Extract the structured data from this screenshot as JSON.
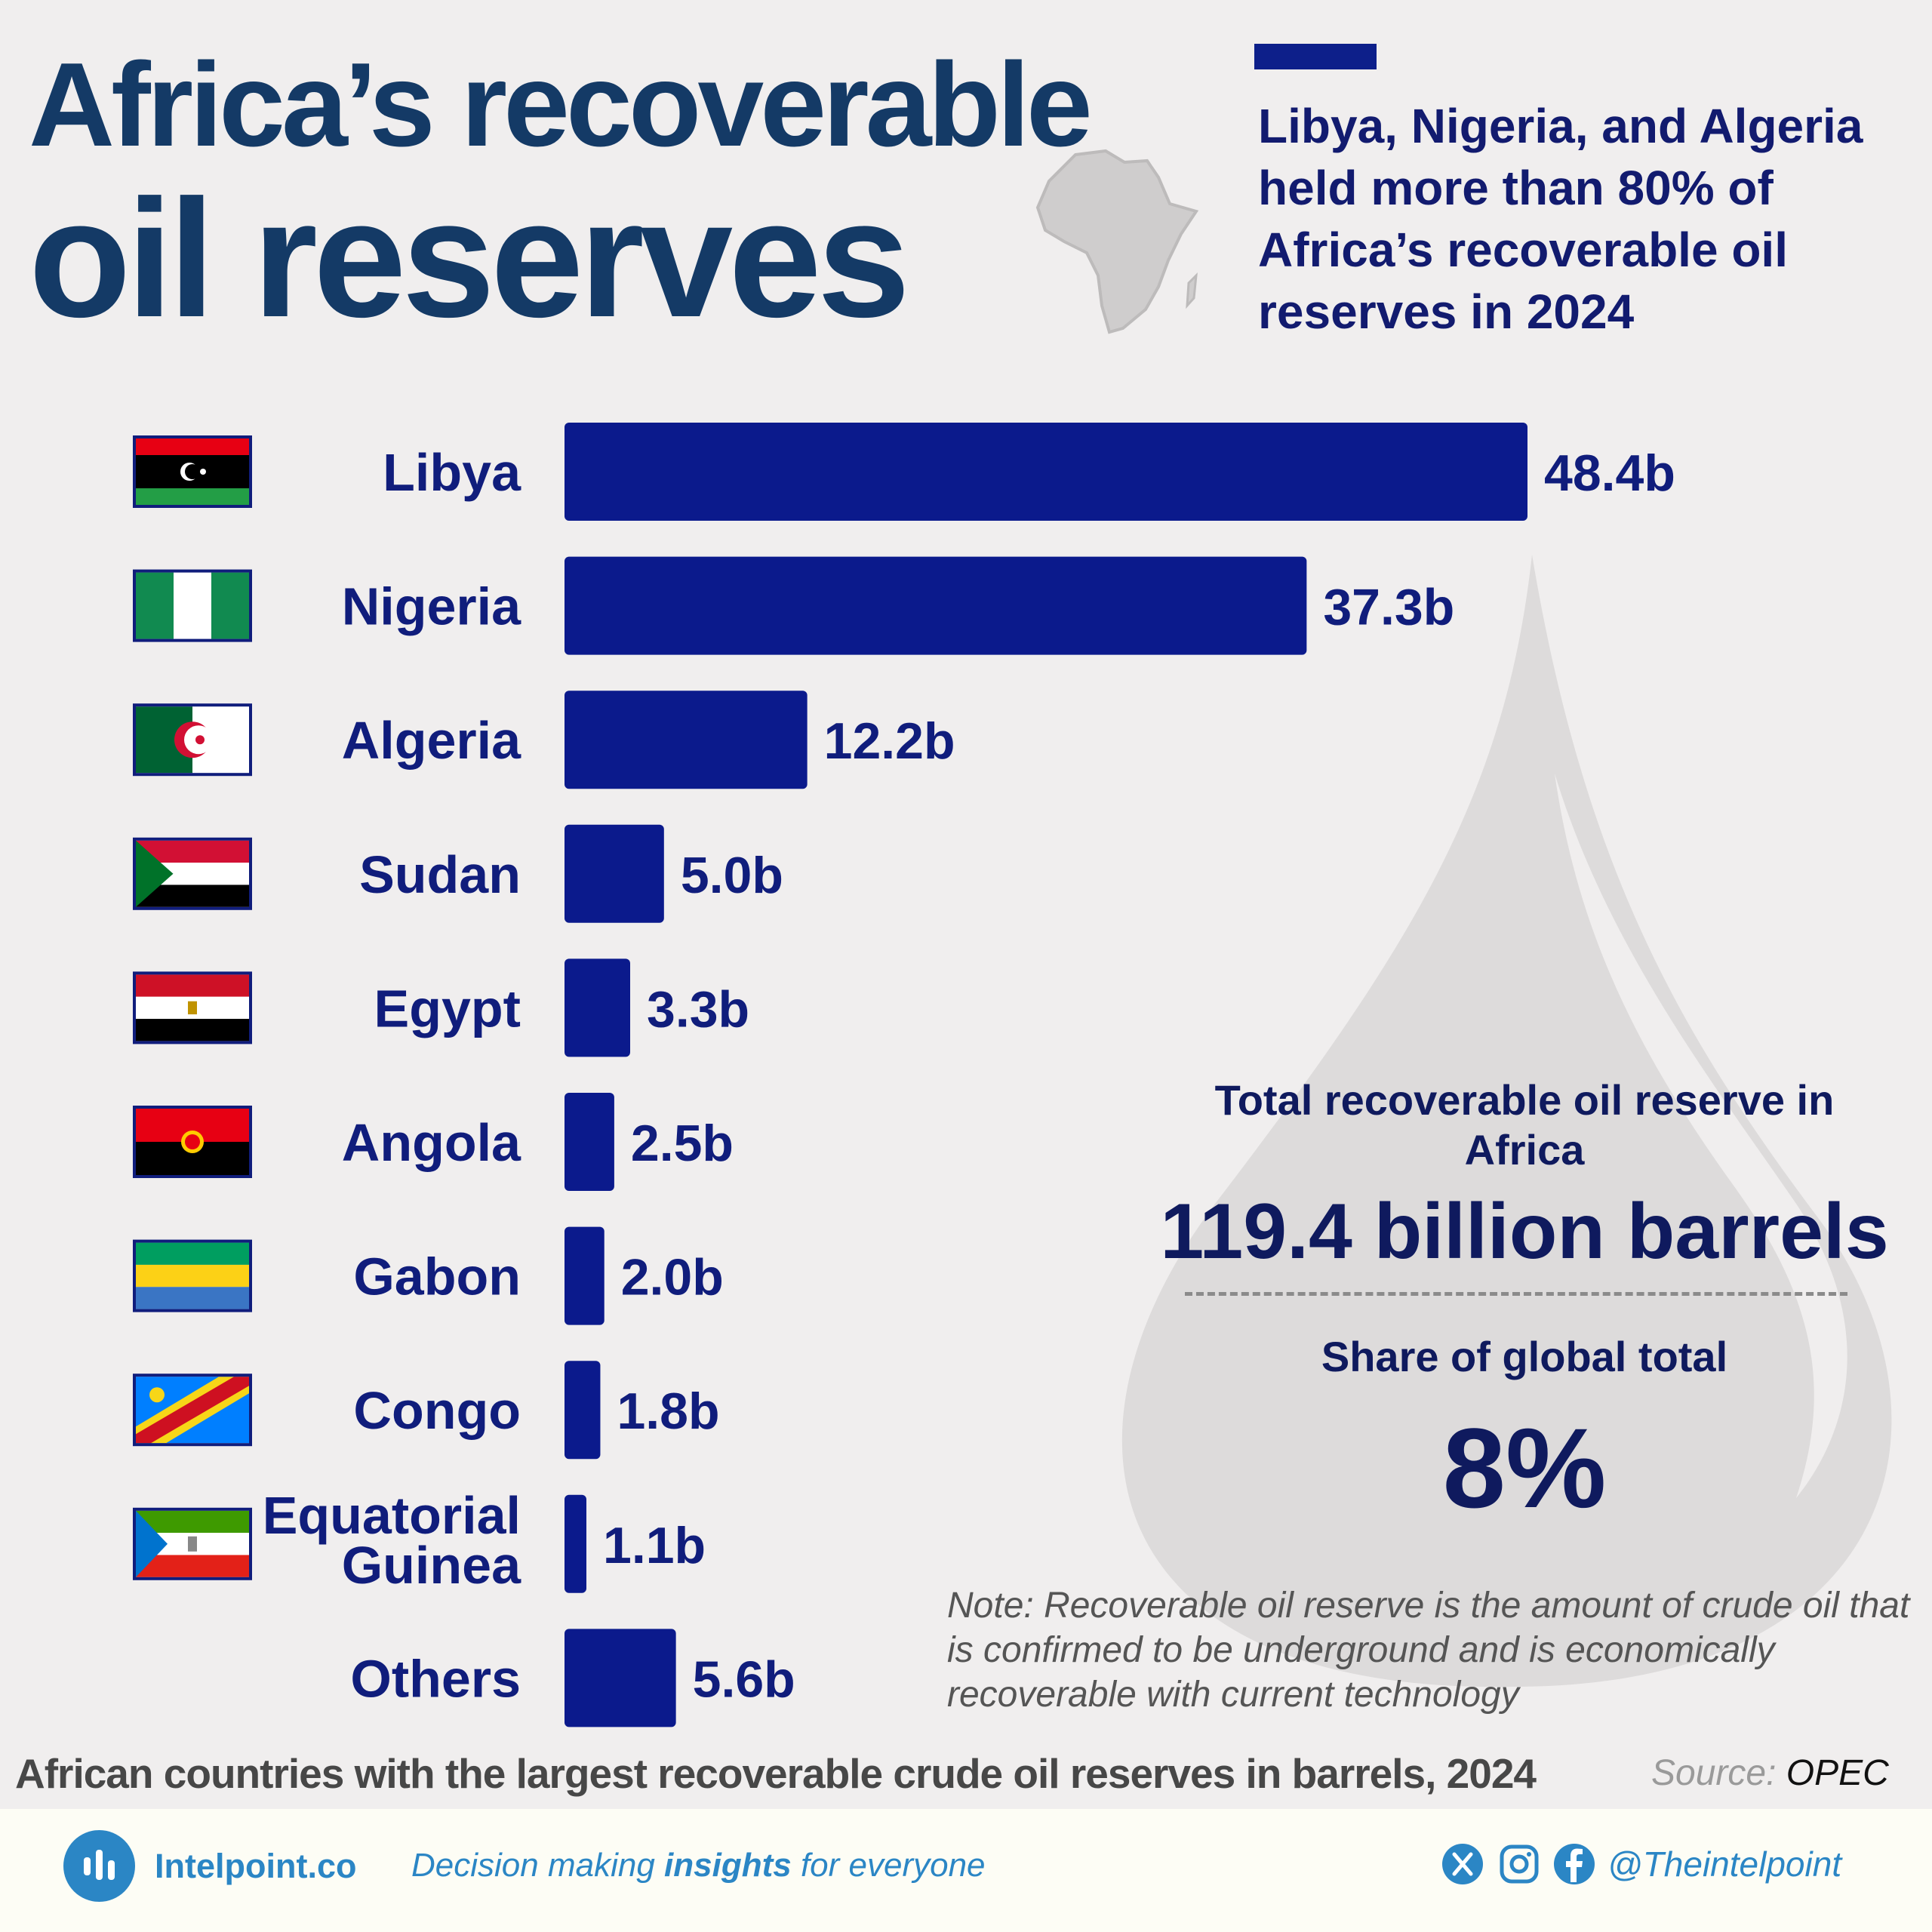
{
  "header": {
    "title_line1": "Africa’s recoverable",
    "title_line2": "oil reserves",
    "subtitle": "Libya, Nigeria, and Algeria held more than 80% of Africa’s recoverable oil reserves in 2024"
  },
  "chart_data": {
    "type": "bar",
    "orientation": "horizontal",
    "categories": [
      "Libya",
      "Nigeria",
      "Algeria",
      "Sudan",
      "Egypt",
      "Angola",
      "Gabon",
      "Congo",
      "Equatorial Guinea",
      "Others"
    ],
    "values": [
      48.4,
      37.3,
      12.2,
      5.0,
      3.3,
      2.5,
      2.0,
      1.8,
      1.1,
      5.6
    ],
    "value_labels": [
      "48.4b",
      "37.3b",
      "12.2b",
      "5.0b",
      "3.3b",
      "2.5b",
      "2.0b",
      "1.8b",
      "1.1b",
      "5.6b"
    ],
    "unit": "billion barrels",
    "bar_color": "#0b1a8c",
    "caption": "African countries with the largest recoverable crude oil reserves in barrels, 2024"
  },
  "summary": {
    "total_label": "Total recoverable oil reserve in Africa",
    "total_value": "119.4 billion barrels",
    "share_label": "Share of global total",
    "share_value": "8%"
  },
  "note": "Note: Recoverable oil reserve is the amount of crude oil that is confirmed to be underground and is economically recoverable with current technology",
  "source": {
    "label": "Source:",
    "value": "OPEC"
  },
  "footer": {
    "brand": "Intelpoint.co",
    "tagline_pre": "Decision making ",
    "tagline_bold": "insights",
    "tagline_post": " for everyone",
    "handle": "@Theintelpoint",
    "icons": [
      "x-icon",
      "instagram-icon",
      "facebook-icon"
    ]
  },
  "colors": {
    "title": "#143a66",
    "bars": "#0b1a8c",
    "brand": "#2b86c5"
  }
}
